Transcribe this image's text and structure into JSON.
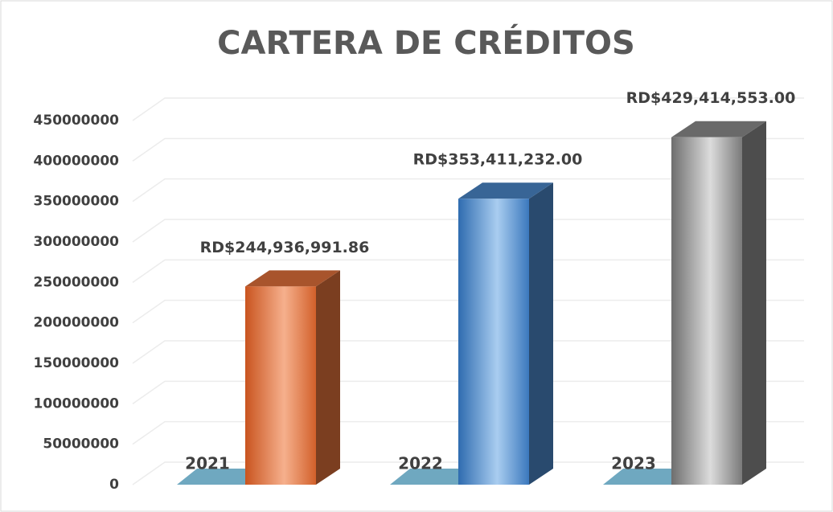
{
  "chart_data": {
    "type": "bar3d",
    "title": "CARTERA DE CRÉDITOS",
    "categories": [
      "2021",
      "2022",
      "2023"
    ],
    "values": [
      244936991.86,
      353411232,
      429414553
    ],
    "value_labels": [
      "RD$244,936,991.86",
      "RD$353,411,232.00",
      "RD$429,414,553.00"
    ],
    "colors": [
      "#e0703a",
      "#4a86c8",
      "#8c8c8c"
    ],
    "ylim": [
      0,
      450000000
    ],
    "yticks": [
      0,
      50000000,
      100000000,
      150000000,
      200000000,
      250000000,
      300000000,
      350000000,
      400000000,
      450000000
    ],
    "grid": true
  }
}
